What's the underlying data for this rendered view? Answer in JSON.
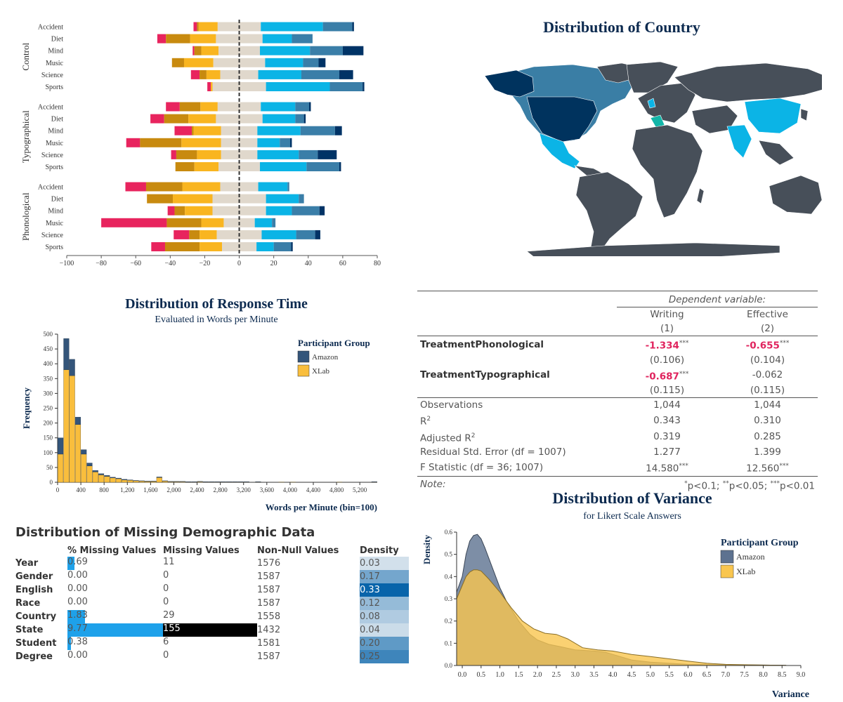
{
  "likert": {
    "groups": [
      "Control",
      "Typographical",
      "Phonological"
    ],
    "categories": [
      "Accident",
      "Diet",
      "Mind",
      "Music",
      "Science",
      "Sports"
    ],
    "x_ticks": [
      -100,
      -80,
      -60,
      -40,
      -20,
      0,
      20,
      40,
      60,
      80
    ],
    "xlim": [
      -100,
      80
    ],
    "colors": [
      "#e8245e",
      "#c88a0f",
      "#f9b520",
      "#e0d8cc",
      "#0bb4e6",
      "#3a7ea8",
      "#003366"
    ],
    "rows": [
      {
        "g": 0,
        "c": "Accident",
        "v": [
          2,
          1,
          11,
          25,
          36,
          17,
          1
        ]
      },
      {
        "g": 0,
        "c": "Diet",
        "v": [
          5,
          14,
          15,
          27,
          17,
          12,
          0
        ]
      },
      {
        "g": 0,
        "c": "Mind",
        "v": [
          1,
          4,
          10,
          24,
          29,
          19,
          12
        ]
      },
      {
        "g": 0,
        "c": "Music",
        "v": [
          0,
          7,
          17,
          30,
          22,
          9,
          4
        ]
      },
      {
        "g": 0,
        "c": "Science",
        "v": [
          5,
          4,
          8,
          22,
          25,
          22,
          8
        ]
      },
      {
        "g": 0,
        "c": "Sports",
        "v": [
          2,
          0,
          1,
          31,
          37,
          19,
          1
        ]
      },
      {
        "g": 1,
        "c": "Accident",
        "v": [
          8,
          12,
          10,
          25,
          20,
          8,
          1
        ]
      },
      {
        "g": 1,
        "c": "Diet",
        "v": [
          8,
          14,
          16,
          27,
          19,
          5,
          1
        ]
      },
      {
        "g": 1,
        "c": "Mind",
        "v": [
          10,
          1,
          16,
          21,
          25,
          20,
          4
        ]
      },
      {
        "g": 1,
        "c": "Music",
        "v": [
          8,
          24,
          23,
          21,
          13,
          6,
          1
        ]
      },
      {
        "g": 1,
        "c": "Science",
        "v": [
          3,
          12,
          14,
          21,
          24,
          11,
          11
        ]
      },
      {
        "g": 1,
        "c": "Sports",
        "v": [
          0,
          11,
          14,
          24,
          27,
          19,
          1
        ]
      },
      {
        "g": 2,
        "c": "Accident",
        "v": [
          12,
          21,
          22,
          22,
          17,
          1,
          0
        ]
      },
      {
        "g": 2,
        "c": "Diet",
        "v": [
          0,
          15,
          23,
          31,
          19,
          3,
          0
        ]
      },
      {
        "g": 2,
        "c": "Mind",
        "v": [
          4,
          6,
          16,
          31,
          15,
          16,
          3
        ]
      },
      {
        "g": 2,
        "c": "Music",
        "v": [
          38,
          20,
          13,
          18,
          10,
          2,
          0
        ]
      },
      {
        "g": 2,
        "c": "Science",
        "v": [
          9,
          6,
          10,
          26,
          20,
          11,
          3
        ]
      },
      {
        "g": 2,
        "c": "Sports",
        "v": [
          8,
          20,
          13,
          20,
          10,
          10,
          1
        ]
      }
    ]
  },
  "map": {
    "title": "Distribution of Country",
    "colors": {
      "base": "#474f59",
      "usa": "#00335e",
      "canada": "#3a7ea5",
      "mid": "#0bb4e6",
      "teal": "#13b5a8",
      "ocean": "#ffffff"
    }
  },
  "response_time": {
    "title": "Distribution of Response Time",
    "subtitle": "Evaluated in Words per Minute",
    "ylabel": "Frequency",
    "xlabel": "Words per Minute (bin=100)",
    "legend_title": "Participant Group",
    "series_names": [
      "Amazon",
      "XLab"
    ],
    "colors": [
      "#34557a",
      "#f9be3d"
    ],
    "y_ticks": [
      0,
      50,
      100,
      150,
      200,
      250,
      300,
      350,
      400,
      450,
      500
    ],
    "x_ticks": [
      "0",
      "400",
      "800",
      "1,200",
      "1,600",
      "2,000",
      "2,400",
      "2,800",
      "3,200",
      "3,600",
      "4,000",
      "4,400",
      "4,800",
      "5,200"
    ],
    "xlim": [
      0,
      5500
    ],
    "ylim": [
      0,
      500
    ],
    "bins_start": [
      0,
      100,
      200,
      300,
      400,
      500,
      600,
      700,
      800,
      900,
      1000,
      1100,
      1200,
      1300,
      1400,
      1500,
      1600,
      1700,
      1800,
      1900,
      2000,
      2100,
      2200,
      2300,
      2400,
      2500,
      2600,
      2700,
      2800,
      2900,
      3000,
      3100,
      3200,
      3300,
      3400,
      3500,
      3600,
      3700,
      3800,
      3900,
      4000,
      4100,
      4200,
      4300,
      4400,
      4500,
      4600,
      4700,
      4800,
      4900,
      5000,
      5100,
      5200,
      5300,
      5400
    ],
    "xlab_counts": [
      95,
      380,
      360,
      195,
      95,
      55,
      35,
      25,
      20,
      15,
      12,
      8,
      7,
      5,
      4,
      3,
      3,
      16,
      4,
      2,
      2,
      2,
      1,
      1,
      2,
      1,
      1,
      1,
      1,
      1,
      1,
      1,
      1,
      0,
      1,
      0,
      0,
      0,
      1,
      0,
      1,
      0,
      0,
      0,
      0,
      0,
      0,
      0,
      1,
      0,
      0,
      0,
      0,
      0,
      1
    ],
    "amazon_counts": [
      55,
      105,
      55,
      25,
      15,
      10,
      5,
      4,
      3,
      2,
      2,
      2,
      1,
      1,
      1,
      1,
      1,
      2,
      1,
      1,
      1,
      1,
      1,
      1,
      1,
      1,
      1,
      1,
      1,
      1,
      1,
      1,
      1,
      0,
      1,
      0,
      0,
      0,
      0,
      0,
      0,
      0,
      0,
      0,
      0,
      0,
      0,
      0,
      0,
      0,
      0,
      0,
      0,
      0,
      1
    ]
  },
  "regression": {
    "dep_var": "Dependent variable:",
    "col1": "Writing",
    "col2": "Effective",
    "num1": "(1)",
    "num2": "(2)",
    "r1_label": "TreatmentPhonological",
    "r1_c1": "-1.334",
    "r1_c1_stars": "***",
    "r1_c2": "-0.655",
    "r1_c2_stars": "***",
    "r1_se1": "(0.106)",
    "r1_se2": "(0.104)",
    "r2_label": "TreatmentTypographical",
    "r2_c1": "-0.687",
    "r2_c1_stars": "***",
    "r2_c2": "-0.062",
    "r2_se1": "(0.115)",
    "r2_se2": "(0.115)",
    "obs_label": "Observations",
    "obs1": "1,044",
    "obs2": "1,044",
    "r2label_base": "R",
    "r2label_sup": "2",
    "r2v1": "0.343",
    "r2v2": "0.310",
    "adj_label": "Adjusted R",
    "adj1": "0.319",
    "adj2": "0.285",
    "rse_label": "Residual Std. Error (df = 1007)",
    "rse1": "1.277",
    "rse2": "1.399",
    "f_label": "F Statistic (df = 36; 1007)",
    "f1": "14.580",
    "f1_stars": "***",
    "f2": "12.560",
    "f2_stars": "***",
    "note_label": "Note:",
    "note_text": [
      {
        "star": "*",
        "txt": "p<0.1; "
      },
      {
        "star": "**",
        "txt": "p<0.05; "
      },
      {
        "star": "***",
        "txt": "p<0.01"
      }
    ]
  },
  "missing": {
    "title": "Distribution of Missing Demographic Data",
    "headers": [
      "% Missing Values",
      "Missing Values",
      "Non-Null Values",
      "Density"
    ],
    "rows": [
      {
        "label": "Year",
        "pct": "0.69",
        "pctv": 0.69,
        "miss": "11",
        "missv": 11,
        "nonnull": "1576",
        "density": "0.03",
        "dv": 0.03
      },
      {
        "label": "Gender",
        "pct": "0.00",
        "pctv": 0,
        "miss": "0",
        "missv": 0,
        "nonnull": "1587",
        "density": "0.17",
        "dv": 0.17
      },
      {
        "label": "English",
        "pct": "0.00",
        "pctv": 0,
        "miss": "0",
        "missv": 0,
        "nonnull": "1587",
        "density": "0.33",
        "dv": 0.33
      },
      {
        "label": "Race",
        "pct": "0.00",
        "pctv": 0,
        "miss": "0",
        "missv": 0,
        "nonnull": "1587",
        "density": "0.12",
        "dv": 0.12
      },
      {
        "label": "Country",
        "pct": "1.83",
        "pctv": 1.83,
        "miss": "29",
        "missv": 29,
        "nonnull": "1558",
        "density": "0.08",
        "dv": 0.08
      },
      {
        "label": "State",
        "pct": "9.77",
        "pctv": 9.77,
        "miss": "155",
        "missv": 155,
        "nonnull": "1432",
        "density": "0.04",
        "dv": 0.04
      },
      {
        "label": "Student",
        "pct": "0.38",
        "pctv": 0.38,
        "miss": "6",
        "missv": 6,
        "nonnull": "1581",
        "density": "0.20",
        "dv": 0.2
      },
      {
        "label": "Degree",
        "pct": "0.00",
        "pctv": 0,
        "miss": "0",
        "missv": 0,
        "nonnull": "1587",
        "density": "0.25",
        "dv": 0.25
      }
    ]
  },
  "variance": {
    "title": "Distribution of Variance",
    "subtitle": "for Likert Scale Answers",
    "ylabel": "Density",
    "xlabel": "Variance",
    "legend_title": "Participant Group",
    "series_names": [
      "Amazon",
      "XLab"
    ],
    "colors": [
      "#5d7290",
      "#f9c64f"
    ],
    "x_ticks": [
      "0.0",
      "0.5",
      "1.0",
      "1.5",
      "2.0",
      "2.5",
      "3.0",
      "3.5",
      "4.0",
      "4.5",
      "5.0",
      "5.5",
      "6.0",
      "6.5",
      "7.0",
      "7.5",
      "8.0",
      "8.5",
      "9.0"
    ],
    "y_ticks": [
      "0.0",
      "0.1",
      "0.2",
      "0.3",
      "0.4",
      "0.5",
      "0.6"
    ],
    "xlim": [
      -0.15,
      9.0
    ],
    "ylim": [
      0,
      0.6
    ],
    "amazon": [
      [
        -0.15,
        0.33
      ],
      [
        0,
        0.4
      ],
      [
        0.1,
        0.5
      ],
      [
        0.2,
        0.56
      ],
      [
        0.3,
        0.585
      ],
      [
        0.4,
        0.59
      ],
      [
        0.5,
        0.57
      ],
      [
        0.6,
        0.53
      ],
      [
        0.8,
        0.44
      ],
      [
        1.0,
        0.35
      ],
      [
        1.2,
        0.28
      ],
      [
        1.5,
        0.2
      ],
      [
        1.8,
        0.14
      ],
      [
        2.0,
        0.115
      ],
      [
        2.3,
        0.095
      ],
      [
        2.6,
        0.085
      ],
      [
        3.0,
        0.07
      ],
      [
        3.5,
        0.065
      ],
      [
        3.8,
        0.06
      ],
      [
        4.0,
        0.05
      ],
      [
        4.5,
        0.025
      ],
      [
        5.0,
        0.015
      ],
      [
        5.5,
        0.01
      ],
      [
        6.0,
        0.005
      ],
      [
        6.5,
        0.004
      ],
      [
        7.0,
        0.003
      ],
      [
        8.0,
        0.002
      ],
      [
        8.6,
        0.001
      ]
    ],
    "xlab": [
      [
        -0.15,
        0.3
      ],
      [
        0,
        0.36
      ],
      [
        0.1,
        0.4
      ],
      [
        0.2,
        0.42
      ],
      [
        0.3,
        0.43
      ],
      [
        0.4,
        0.43
      ],
      [
        0.5,
        0.425
      ],
      [
        0.7,
        0.39
      ],
      [
        1.0,
        0.33
      ],
      [
        1.3,
        0.26
      ],
      [
        1.6,
        0.2
      ],
      [
        1.9,
        0.165
      ],
      [
        2.2,
        0.145
      ],
      [
        2.5,
        0.14
      ],
      [
        2.8,
        0.12
      ],
      [
        3.2,
        0.08
      ],
      [
        3.6,
        0.07
      ],
      [
        4.0,
        0.065
      ],
      [
        4.5,
        0.05
      ],
      [
        5.0,
        0.04
      ],
      [
        5.5,
        0.03
      ],
      [
        6.0,
        0.02
      ],
      [
        6.5,
        0.01
      ],
      [
        7.0,
        0.005
      ],
      [
        8.0,
        0.002
      ],
      [
        8.6,
        0.001
      ]
    ]
  }
}
